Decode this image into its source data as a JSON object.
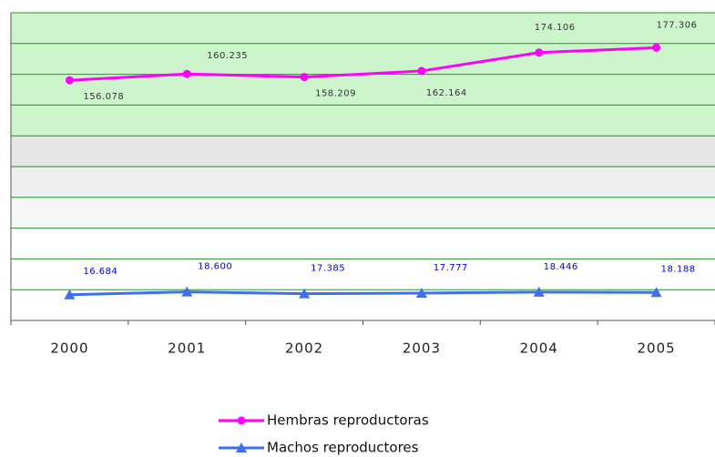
{
  "chart_data": {
    "type": "line",
    "categories": [
      "2000",
      "2001",
      "2002",
      "2003",
      "2004",
      "2005"
    ],
    "series": [
      {
        "name": "Hembras reproductoras",
        "color": "#ff00ff",
        "marker": "circle",
        "values": [
          156078,
          160235,
          158209,
          162164,
          174106,
          177306
        ],
        "value_labels": [
          "156.078",
          "160.235",
          "158.209",
          "162.164",
          "174.106",
          "177.306"
        ]
      },
      {
        "name": "Machos reproductores",
        "color": "#3f6fef",
        "marker": "triangle",
        "values": [
          16684,
          18600,
          17385,
          17777,
          18446,
          18188
        ],
        "value_labels": [
          "16.684",
          "18.600",
          "17.385",
          "17.777",
          "18.446",
          "18.188"
        ]
      }
    ],
    "ylim": [
      0,
      200000
    ],
    "yticks": [
      0,
      20000,
      40000,
      60000,
      80000,
      100000,
      120000,
      140000,
      160000,
      180000,
      200000
    ],
    "grid": true
  }
}
